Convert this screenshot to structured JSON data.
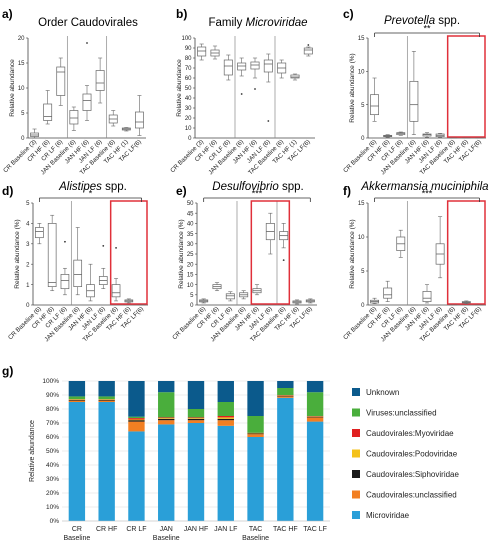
{
  "box_x_labels": [
    "CR Baseline (3)",
    "CR HF (6)",
    "CR LF (6)",
    "JAN Baseline (6)",
    "JAN HF (6)",
    "JAN LF (6)",
    "TAC Baseline (6)",
    "TAC HF (1)",
    "TAC LF(6)"
  ],
  "box_x_labels_alt": [
    "CR Baseline (6)",
    "CR HF (6)",
    "CR LF (6)",
    "JAN Baseline (6)",
    "JAN HF (6)",
    "JAN LF (6)",
    "TAC Baseline (6)",
    "TAC HF (6)",
    "TAC LF(6)"
  ],
  "box_y_label": "Relative abundance",
  "box_y_label_pct": "Relative abundance (%)",
  "colors": {
    "box_stroke": "#666666",
    "divider": "#888888",
    "highlight": "#e0303a",
    "bracket": "#333333"
  },
  "chart_data": [
    {
      "type": "box",
      "panel": "a)",
      "title_plain": "Order Caudovirales",
      "title_italic": "",
      "ylim": [
        0,
        20
      ],
      "yticks": [
        0,
        5,
        10,
        15,
        20
      ],
      "label_set": "box_x_labels",
      "boxes": [
        {
          "q1": 0.3,
          "med": 0.6,
          "q3": 1.0,
          "lo": 0,
          "hi": 1.8,
          "out": []
        },
        {
          "q1": 3.5,
          "med": 4.3,
          "q3": 6.8,
          "lo": 2.8,
          "hi": 9.5,
          "out": []
        },
        {
          "q1": 8.5,
          "med": 13.2,
          "q3": 14.2,
          "lo": 6.5,
          "hi": 16,
          "out": []
        },
        {
          "q1": 2.8,
          "med": 4.0,
          "q3": 5.5,
          "lo": 1.5,
          "hi": 6.2,
          "out": []
        },
        {
          "q1": 5.5,
          "med": 7.5,
          "q3": 8.8,
          "lo": 3.5,
          "hi": 10.5,
          "out": [
            19
          ]
        },
        {
          "q1": 9.5,
          "med": 11,
          "q3": 13.5,
          "lo": 7,
          "hi": 16,
          "out": []
        },
        {
          "q1": 3.0,
          "med": 3.8,
          "q3": 4.6,
          "lo": 2.4,
          "hi": 5.5,
          "out": []
        },
        {
          "q1": 1.6,
          "med": 1.8,
          "q3": 2.0,
          "lo": 1.4,
          "hi": 2.1,
          "out": []
        },
        {
          "q1": 2.0,
          "med": 3.2,
          "q3": 5.2,
          "lo": 0.5,
          "hi": 8.5,
          "out": []
        }
      ],
      "dividers": [
        3,
        6
      ],
      "highlight": null,
      "bracket": null
    },
    {
      "type": "box",
      "panel": "b)",
      "title_plain": "Family ",
      "title_italic": "Microviridae",
      "ylim": [
        0,
        100
      ],
      "yticks": [
        0,
        10,
        20,
        30,
        40,
        50,
        60,
        70,
        80,
        90,
        100
      ],
      "label_set": "box_x_labels",
      "boxes": [
        {
          "q1": 82,
          "med": 87,
          "q3": 91,
          "lo": 78,
          "hi": 94,
          "out": []
        },
        {
          "q1": 82,
          "med": 85,
          "q3": 88,
          "lo": 79,
          "hi": 92,
          "out": []
        },
        {
          "q1": 63,
          "med": 72,
          "q3": 78,
          "lo": 58,
          "hi": 83,
          "out": []
        },
        {
          "q1": 68,
          "med": 72,
          "q3": 75,
          "lo": 62,
          "hi": 80,
          "out": [
            44
          ]
        },
        {
          "q1": 69,
          "med": 73,
          "q3": 76,
          "lo": 60,
          "hi": 80,
          "out": [
            49
          ]
        },
        {
          "q1": 66,
          "med": 74,
          "q3": 78,
          "lo": 56,
          "hi": 84,
          "out": [
            17
          ]
        },
        {
          "q1": 65,
          "med": 70,
          "q3": 75,
          "lo": 60,
          "hi": 78,
          "out": []
        },
        {
          "q1": 60,
          "med": 61,
          "q3": 63,
          "lo": 58,
          "hi": 64,
          "out": []
        },
        {
          "q1": 84,
          "med": 88,
          "q3": 90,
          "lo": 82,
          "hi": 91,
          "out": [
            93
          ]
        }
      ],
      "dividers": [
        3,
        6
      ],
      "highlight": null,
      "bracket": null
    },
    {
      "type": "box",
      "panel": "c)",
      "title_plain": " spp.",
      "title_italic": "Prevotella",
      "ylim": [
        0,
        15
      ],
      "yticks": [
        0,
        5,
        10,
        15
      ],
      "label_set": "box_x_labels_alt",
      "boxes": [
        {
          "q1": 3.5,
          "med": 4.8,
          "q3": 6.5,
          "lo": 2.5,
          "hi": 9,
          "out": []
        },
        {
          "q1": 0.2,
          "med": 0.3,
          "q3": 0.4,
          "lo": 0.1,
          "hi": 0.5,
          "out": []
        },
        {
          "q1": 0.5,
          "med": 0.7,
          "q3": 0.8,
          "lo": 0.4,
          "hi": 0.9,
          "out": []
        },
        {
          "q1": 2.5,
          "med": 5,
          "q3": 8.5,
          "lo": 0.5,
          "hi": 13,
          "out": []
        },
        {
          "q1": 0.3,
          "med": 0.5,
          "q3": 0.6,
          "lo": 0.1,
          "hi": 0.8,
          "out": []
        },
        {
          "q1": 0.2,
          "med": 0.4,
          "q3": 0.6,
          "lo": 0.1,
          "hi": 0.7,
          "out": []
        },
        {
          "q1": 0,
          "med": 0,
          "q3": 0,
          "lo": 0,
          "hi": 0,
          "out": []
        },
        {
          "q1": 0,
          "med": 0,
          "q3": 0,
          "lo": 0,
          "hi": 0,
          "out": []
        },
        {
          "q1": 0,
          "med": 0,
          "q3": 0,
          "lo": 0,
          "hi": 0,
          "out": []
        }
      ],
      "dividers": [
        3
      ],
      "highlight": [
        6,
        8
      ],
      "bracket": {
        "label": "**"
      }
    },
    {
      "type": "box",
      "panel": "d)",
      "title_plain": " spp.",
      "title_italic": "Alistipes",
      "ylim": [
        0,
        5
      ],
      "yticks": [
        0,
        1,
        2,
        3,
        4,
        5
      ],
      "label_set": "box_x_labels_alt",
      "boxes": [
        {
          "q1": 3.3,
          "med": 3.6,
          "q3": 3.8,
          "lo": 3.0,
          "hi": 4.0,
          "out": []
        },
        {
          "q1": 0.9,
          "med": 1.1,
          "q3": 4.0,
          "lo": 0.7,
          "hi": 4.4,
          "out": []
        },
        {
          "q1": 0.8,
          "med": 1.2,
          "q3": 1.5,
          "lo": 0.5,
          "hi": 1.8,
          "out": [
            3.1
          ]
        },
        {
          "q1": 0.9,
          "med": 1.5,
          "q3": 2.2,
          "lo": 0.5,
          "hi": 3.8,
          "out": []
        },
        {
          "q1": 0.4,
          "med": 0.7,
          "q3": 1.0,
          "lo": 0.2,
          "hi": 2.0,
          "out": []
        },
        {
          "q1": 1.0,
          "med": 1.2,
          "q3": 1.4,
          "lo": 0.8,
          "hi": 1.8,
          "out": [
            2.9
          ]
        },
        {
          "q1": 0.4,
          "med": 0.6,
          "q3": 1.0,
          "lo": 0.2,
          "hi": 1.3,
          "out": [
            2.8
          ]
        },
        {
          "q1": 0.15,
          "med": 0.2,
          "q3": 0.25,
          "lo": 0.1,
          "hi": 0.3,
          "out": []
        },
        {
          "q1": 0,
          "med": 0,
          "q3": 0,
          "lo": 0,
          "hi": 0,
          "out": []
        }
      ],
      "dividers": [
        3
      ],
      "highlight": [
        6,
        8
      ],
      "bracket": {
        "label": "*"
      }
    },
    {
      "type": "box",
      "panel": "e)",
      "title_plain": " spp.",
      "title_italic": "Desulfovibrio",
      "ylim": [
        0,
        50
      ],
      "yticks": [
        0,
        5,
        10,
        15,
        20,
        25,
        30,
        35,
        40,
        45,
        50
      ],
      "label_set": "box_x_labels_alt",
      "boxes": [
        {
          "q1": 1.5,
          "med": 2,
          "q3": 2.5,
          "lo": 1,
          "hi": 3,
          "out": []
        },
        {
          "q1": 8,
          "med": 9,
          "q3": 10,
          "lo": 7,
          "hi": 11,
          "out": []
        },
        {
          "q1": 3,
          "med": 4.5,
          "q3": 5.5,
          "lo": 2,
          "hi": 6.5,
          "out": []
        },
        {
          "q1": 4,
          "med": 5,
          "q3": 6,
          "lo": 3,
          "hi": 7,
          "out": []
        },
        {
          "q1": 6,
          "med": 7,
          "q3": 8,
          "lo": 5,
          "hi": 10,
          "out": []
        },
        {
          "q1": 32,
          "med": 36,
          "q3": 40,
          "lo": 25,
          "hi": 45,
          "out": []
        },
        {
          "q1": 32,
          "med": 34,
          "q3": 36,
          "lo": 28,
          "hi": 40,
          "out": [
            22
          ]
        },
        {
          "q1": 1,
          "med": 1.5,
          "q3": 2,
          "lo": 0.5,
          "hi": 2.5,
          "out": []
        },
        {
          "q1": 1.5,
          "med": 2,
          "q3": 2.5,
          "lo": 1,
          "hi": 3,
          "out": []
        }
      ],
      "dividers": [
        3,
        6
      ],
      "highlight": [
        4,
        6
      ],
      "bracket": {
        "label": "***"
      }
    },
    {
      "type": "box",
      "panel": "f)",
      "title_plain": "",
      "title_italic": "Akkermansia muciniphila",
      "ylim": [
        0,
        15
      ],
      "yticks": [
        0,
        5,
        10,
        15
      ],
      "label_set": "box_x_labels_alt",
      "boxes": [
        {
          "q1": 0.3,
          "med": 0.5,
          "q3": 0.7,
          "lo": 0.2,
          "hi": 1.0,
          "out": []
        },
        {
          "q1": 1.0,
          "med": 1.5,
          "q3": 2.5,
          "lo": 0.5,
          "hi": 3.5,
          "out": []
        },
        {
          "q1": 8,
          "med": 9,
          "q3": 10,
          "lo": 7,
          "hi": 11,
          "out": []
        },
        {
          "q1": 0,
          "med": 0,
          "q3": 0,
          "lo": 0,
          "hi": 0,
          "out": []
        },
        {
          "q1": 0.5,
          "med": 1,
          "q3": 2,
          "lo": 0.3,
          "hi": 3,
          "out": []
        },
        {
          "q1": 6,
          "med": 7.5,
          "q3": 9,
          "lo": 4,
          "hi": 13,
          "out": []
        },
        {
          "q1": 0,
          "med": 0,
          "q3": 0,
          "lo": 0,
          "hi": 0,
          "out": []
        },
        {
          "q1": 0.3,
          "med": 0.4,
          "q3": 0.5,
          "lo": 0.2,
          "hi": 0.6,
          "out": []
        },
        {
          "q1": 0,
          "med": 0,
          "q3": 0,
          "lo": 0,
          "hi": 0,
          "out": []
        }
      ],
      "dividers": [
        3
      ],
      "highlight": [
        6,
        8
      ],
      "bracket": {
        "label": "***"
      }
    },
    {
      "type": "bar",
      "panel": "g)",
      "stacked": true,
      "ylabel": "Relative abundance",
      "yticks": [
        "0%",
        "10%",
        "20%",
        "30%",
        "40%",
        "50%",
        "60%",
        "70%",
        "80%",
        "90%",
        "100%"
      ],
      "categories": [
        "CR",
        "CR HF",
        "CR LF",
        "JAN",
        "JAN HF",
        "JAN LF",
        "TAC",
        "TAC HF",
        "TAC LF"
      ],
      "group_labels": [
        "Baseline",
        "",
        "",
        "Baseline",
        "",
        "",
        "Baseline",
        "",
        ""
      ],
      "series": [
        {
          "name": "Microviridae",
          "color": "#2a9fd8",
          "values": [
            85,
            85,
            64,
            69,
            70,
            68,
            60,
            88,
            71
          ]
        },
        {
          "name": "Caudovirales:unclassified",
          "color": "#f27f22",
          "values": [
            1,
            1,
            7,
            3,
            2,
            4,
            2,
            1,
            3
          ]
        },
        {
          "name": "Caudovirales:Siphoviridae",
          "color": "#1a1a1a",
          "values": [
            0.5,
            0.5,
            1,
            1,
            1,
            1,
            0.5,
            0.5,
            0.5
          ]
        },
        {
          "name": "Caudovirales:Podoviridae",
          "color": "#f4c21a",
          "values": [
            0.3,
            0.3,
            0.5,
            0.5,
            0.5,
            1,
            0.3,
            0.3,
            0.3
          ]
        },
        {
          "name": "Caudovirales:Myoviridae",
          "color": "#e02020",
          "values": [
            0.2,
            0.2,
            1,
            0.5,
            0.5,
            1,
            0.2,
            0.2,
            0.2
          ]
        },
        {
          "name": "Viruses:unclassified",
          "color": "#4aae3c",
          "values": [
            2,
            2,
            1,
            18,
            6,
            10,
            12,
            5,
            17
          ]
        },
        {
          "name": "Unknown",
          "color": "#0b5a8c",
          "values": [
            11,
            11,
            25.5,
            8,
            20,
            15,
            25,
            5,
            8
          ]
        }
      ],
      "legend_order": [
        "Unknown",
        "Viruses:unclassified",
        "Caudovirales:Myoviridae",
        "Caudovirales:Podoviridae",
        "Caudovirales:Siphoviridae",
        "Caudovirales:unclassified",
        "Microviridae"
      ]
    }
  ]
}
